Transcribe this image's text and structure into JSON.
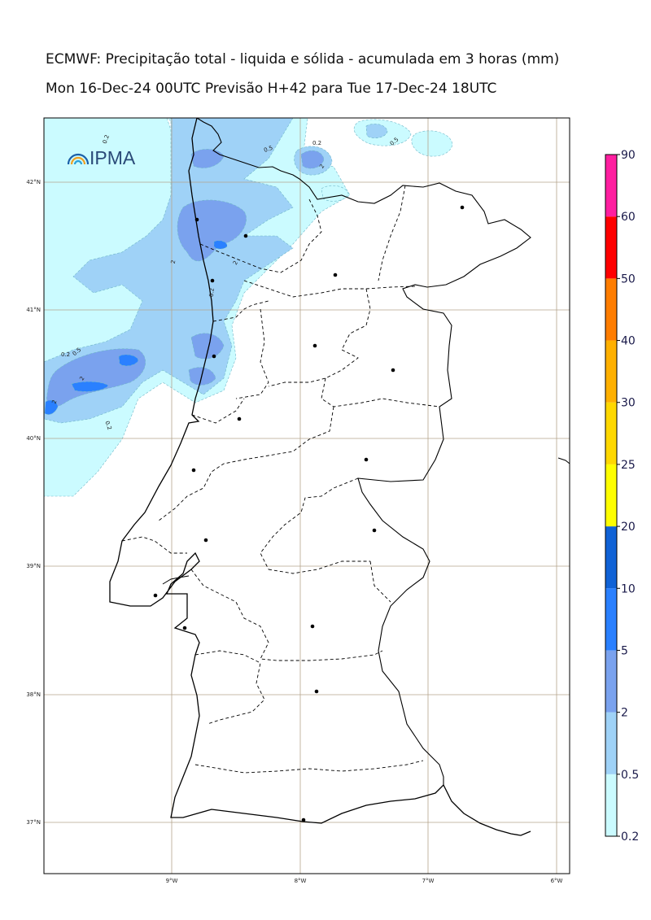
{
  "title": {
    "line1": "ECMWF: Precipitação total - liquida e sólida - acumulada em 3 horas (mm)",
    "line2": "Mon 16-Dec-24 00UTC Previsão H+42 para Tue 17-Dec-24 18UTC"
  },
  "logo": {
    "text": "IPMA"
  },
  "lat_labels": [
    "42°N",
    "41°N",
    "40°N",
    "39°N",
    "38°N",
    "37°N"
  ],
  "lon_labels": [
    "9°W",
    "8°W",
    "7°W",
    "6°W"
  ],
  "contour_labels": [
    "0.2",
    "0.5",
    "2",
    "0.2",
    "0.5",
    "2",
    "2",
    "0.2",
    "0.2",
    "0.5",
    "2",
    "2",
    "0.2"
  ],
  "colorbar": {
    "levels": [
      "0.2",
      "0.5",
      "2",
      "5",
      "10",
      "20",
      "25",
      "30",
      "40",
      "50",
      "60",
      "90"
    ],
    "colors": [
      "#cbfbff",
      "#9fd2f7",
      "#7aa2ee",
      "#2a80ff",
      "#1062d6",
      "#ffff00",
      "#ffd800",
      "#ffb000",
      "#ff7d00",
      "#ff0000",
      "#ff1fa0"
    ]
  },
  "precip_colors": {
    "0.2": "#cbfbff",
    "0.5": "#9fd2f7",
    "2": "#7aa2ee",
    "5": "#2a80ff"
  }
}
